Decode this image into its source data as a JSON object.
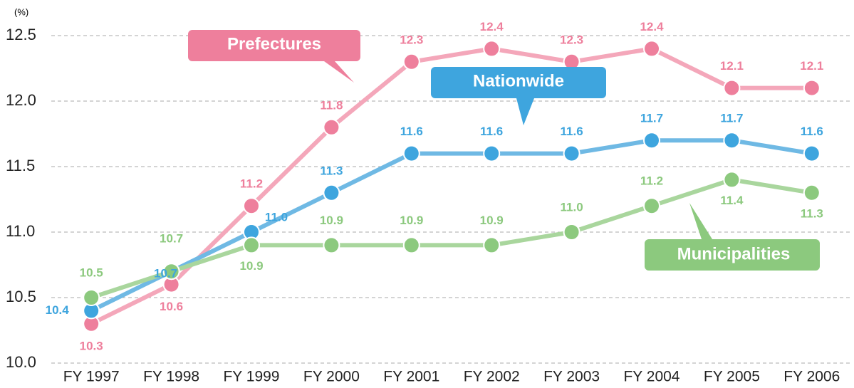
{
  "chart_data": {
    "type": "line",
    "y_label": "(%)",
    "categories": [
      "FY 1997",
      "FY 1998",
      "FY 1999",
      "FY 2000",
      "FY 2001",
      "FY 2002",
      "FY 2003",
      "FY 2004",
      "FY 2005",
      "FY 2006"
    ],
    "series": [
      {
        "name": "Prefectures",
        "color": "#ee7f9c",
        "values": [
          10.3,
          10.6,
          11.2,
          11.8,
          12.3,
          12.4,
          12.3,
          12.4,
          12.1,
          12.1
        ],
        "value_labels": [
          "10.3",
          "10.6",
          "11.2",
          "11.8",
          "12.3",
          "12.4",
          "12.3",
          "12.4",
          "12.1",
          "12.1"
        ]
      },
      {
        "name": "Nationwide",
        "color": "#3ea5de",
        "values": [
          10.4,
          10.7,
          11.0,
          11.3,
          11.6,
          11.6,
          11.6,
          11.7,
          11.7,
          11.6
        ],
        "value_labels": [
          "10.4",
          "10.7",
          "11.0",
          "11.3",
          "11.6",
          "11.6",
          "11.6",
          "11.7",
          "11.7",
          "11.6"
        ]
      },
      {
        "name": "Municipalities",
        "color": "#8cc97e",
        "values": [
          10.5,
          10.7,
          10.9,
          10.9,
          10.9,
          10.9,
          11.0,
          11.2,
          11.4,
          11.3
        ],
        "value_labels": [
          "10.5",
          "10.7",
          "10.9",
          "10.9",
          "10.9",
          "10.9",
          "11.0",
          "11.2",
          "11.4",
          "11.3"
        ]
      }
    ],
    "ylim": [
      10.0,
      12.5
    ],
    "yticks": [
      {
        "value": 10.0,
        "label": "10.0"
      },
      10.5,
      {
        "value": 11.0,
        "label": "11.0"
      },
      11.5,
      {
        "value": 12.0,
        "label": "12.0"
      },
      12.5
    ],
    "grid": true
  }
}
